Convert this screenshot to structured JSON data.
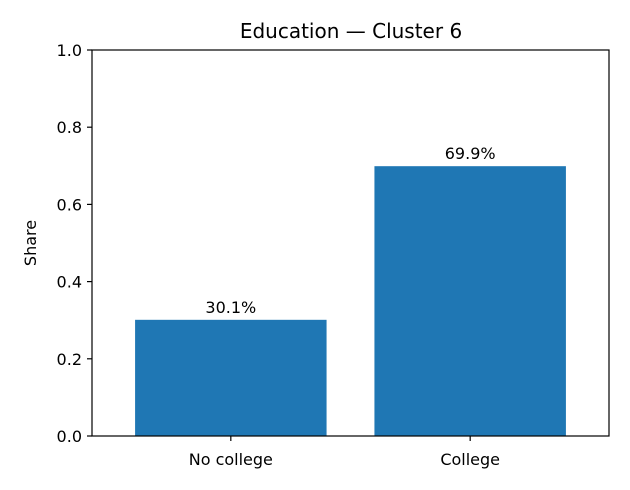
{
  "chart_data": {
    "type": "bar",
    "title": "Education — Cluster 6",
    "xlabel": "",
    "ylabel": "Share",
    "categories": [
      "No college",
      "College"
    ],
    "values": [
      0.301,
      0.699
    ],
    "data_labels": [
      "30.1%",
      "69.9%"
    ],
    "ylim": [
      0,
      1
    ],
    "yticks": [
      0.0,
      0.2,
      0.4,
      0.6,
      0.8,
      1.0
    ],
    "ytick_labels": [
      "0.0",
      "0.2",
      "0.4",
      "0.6",
      "0.8",
      "1.0"
    ],
    "grid": false,
    "legend": "none",
    "bar_color": "#1f77b4"
  }
}
